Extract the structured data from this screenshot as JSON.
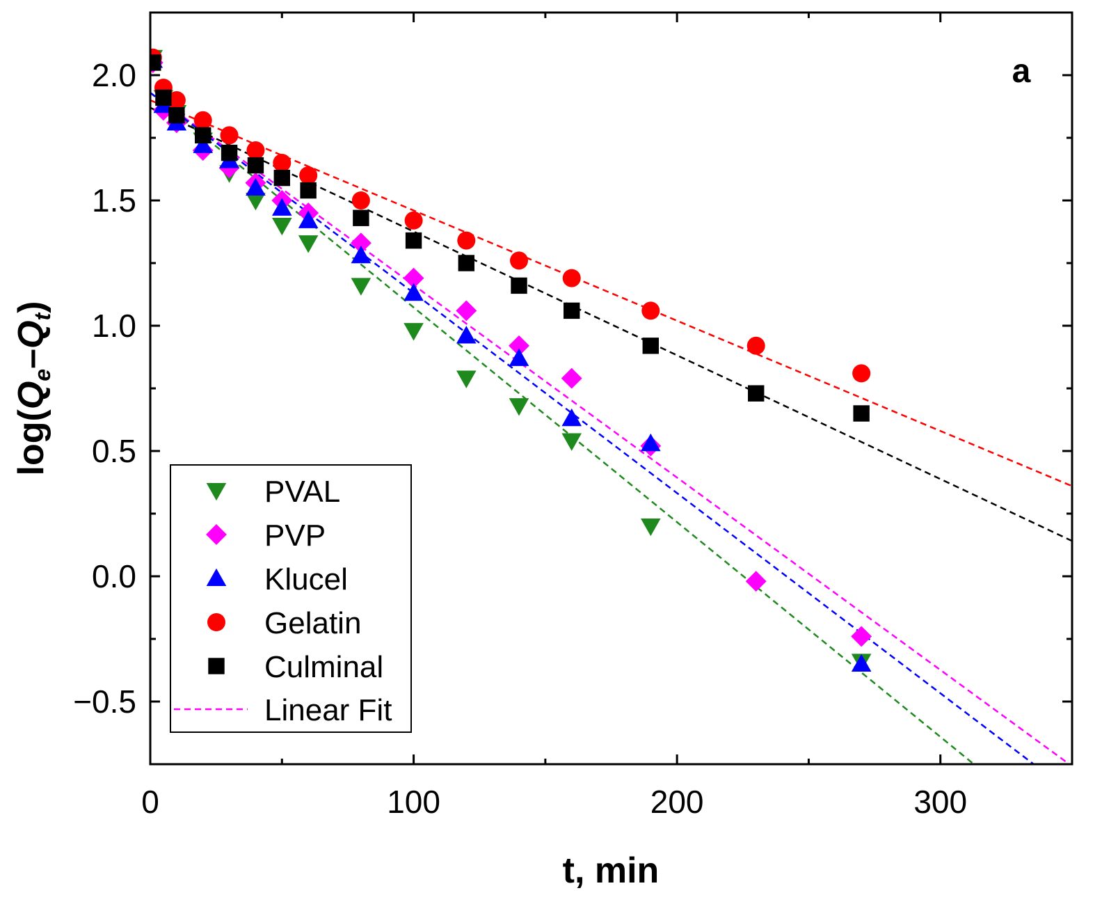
{
  "chart_data": {
    "type": "scatter",
    "title": "",
    "panel_label": "a",
    "xlabel": "t, min",
    "ylabel_parts": [
      "log(",
      "Q",
      "e",
      "–",
      "Q",
      "t",
      ")"
    ],
    "xlim": [
      0,
      350
    ],
    "ylim": [
      -0.75,
      2.25
    ],
    "xticks": [
      0,
      100,
      200,
      300
    ],
    "xtick_labels": [
      "0",
      "100",
      "200",
      "300"
    ],
    "yticks": [
      -0.5,
      0.0,
      0.5,
      1.0,
      1.5,
      2.0
    ],
    "ytick_labels": [
      "−0.5",
      "0.0",
      "0.5",
      "1.0",
      "1.5",
      "2.0"
    ],
    "grid": false,
    "legend_position": "bottom-left",
    "fit_label": "Linear Fit",
    "series": [
      {
        "name": "PVAL",
        "marker": "triangle-down",
        "color": "#1e8a1e",
        "x": [
          1,
          5,
          10,
          20,
          30,
          40,
          50,
          60,
          80,
          100,
          120,
          140,
          160,
          190,
          270
        ],
        "y": [
          2.07,
          1.91,
          1.85,
          1.74,
          1.61,
          1.5,
          1.4,
          1.33,
          1.16,
          0.98,
          0.79,
          0.68,
          0.54,
          0.2,
          -0.34
        ],
        "fit": [
          1.93,
          -0.00857
        ]
      },
      {
        "name": "PVP",
        "marker": "diamond",
        "color": "#ff00ff",
        "x": [
          1,
          5,
          10,
          20,
          30,
          40,
          50,
          60,
          80,
          100,
          120,
          140,
          160,
          190,
          230,
          270
        ],
        "y": [
          2.05,
          1.86,
          1.81,
          1.7,
          1.63,
          1.57,
          1.5,
          1.45,
          1.33,
          1.19,
          1.06,
          0.92,
          0.79,
          0.52,
          -0.02,
          -0.24
        ],
        "fit": [
          1.93,
          -0.00768
        ]
      },
      {
        "name": "Klucel",
        "marker": "triangle-up",
        "color": "#0000ff",
        "x": [
          1,
          5,
          10,
          20,
          30,
          40,
          50,
          60,
          80,
          100,
          120,
          140,
          160,
          190,
          270
        ],
        "y": [
          2.06,
          1.88,
          1.81,
          1.72,
          1.66,
          1.55,
          1.47,
          1.42,
          1.28,
          1.13,
          0.96,
          0.87,
          0.63,
          0.53,
          -0.35
        ],
        "fit": [
          1.93,
          -0.00799
        ]
      },
      {
        "name": "Gelatin",
        "marker": "circle",
        "color": "#ff0000",
        "x": [
          1,
          5,
          10,
          20,
          30,
          40,
          50,
          60,
          80,
          100,
          120,
          140,
          160,
          190,
          230,
          270
        ],
        "y": [
          2.07,
          1.95,
          1.9,
          1.82,
          1.76,
          1.7,
          1.65,
          1.6,
          1.5,
          1.42,
          1.34,
          1.26,
          1.19,
          1.06,
          0.92,
          0.81
        ],
        "fit": [
          1.9,
          -0.0044
        ]
      },
      {
        "name": "Culminal",
        "marker": "square",
        "color": "#000000",
        "x": [
          1,
          5,
          10,
          20,
          30,
          40,
          50,
          60,
          80,
          100,
          120,
          140,
          160,
          190,
          230,
          270
        ],
        "y": [
          2.05,
          1.91,
          1.84,
          1.76,
          1.69,
          1.64,
          1.59,
          1.54,
          1.43,
          1.34,
          1.25,
          1.16,
          1.06,
          0.92,
          0.73,
          0.65
        ],
        "fit": [
          1.87,
          -0.00494
        ]
      }
    ]
  }
}
